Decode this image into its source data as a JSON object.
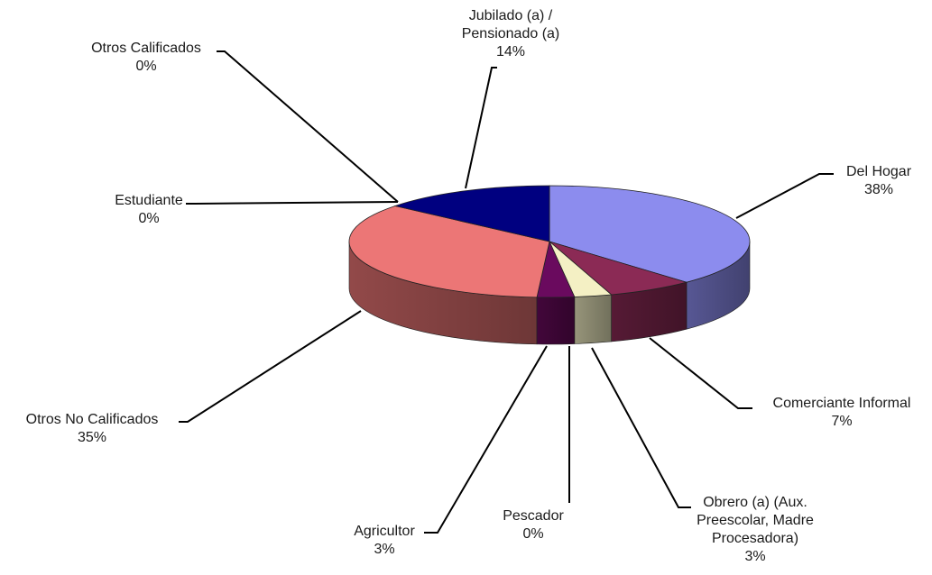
{
  "chart_data": {
    "type": "pie",
    "title": "",
    "categories": [
      "Del Hogar",
      "Comerciante Informal",
      "Obrero (a) (Aux. Preescolar, Madre Procesadora)",
      "Pescador",
      "Agricultor",
      "Otros No Calificados",
      "Estudiante",
      "Otros Calificados",
      "Jubilado (a) / Pensionado (a)"
    ],
    "values": [
      38,
      7,
      3,
      0,
      3,
      35,
      0,
      0,
      14
    ],
    "value_labels": [
      "38%",
      "7%",
      "3%",
      "0%",
      "3%",
      "35%",
      "0%",
      "0%",
      "14%"
    ],
    "colors": [
      "#8c8cee",
      "#8b2a55",
      "#f4f0c4",
      "#5a4a5a",
      "#6a0a5e",
      "#ec7676",
      "#ec7676",
      "#000080",
      "#000080"
    ],
    "label_lines": {
      "del_hogar": [
        "Del Hogar"
      ],
      "comerciante": [
        "Comerciante Informal"
      ],
      "obrero": [
        "Obrero (a) (Aux.",
        "Preescolar, Madre",
        "Procesadora)"
      ],
      "pescador": [
        "Pescador"
      ],
      "agricultor": [
        "Agricultor"
      ],
      "otros_no_calificados": [
        "Otros No Calificados"
      ],
      "estudiante": [
        "Estudiante"
      ],
      "otros_calificados": [
        "Otros Calificados"
      ],
      "jubilado": [
        "Jubilado (a) /",
        "Pensionado (a)"
      ]
    },
    "legend": "none",
    "style": "3d-exploded-labels-with-leader-lines"
  }
}
